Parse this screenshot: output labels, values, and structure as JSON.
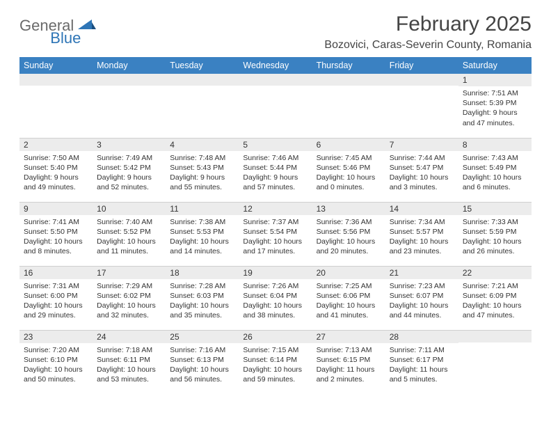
{
  "logo": {
    "part1": "General",
    "part2": "Blue"
  },
  "title": "February 2025",
  "location": "Bozovici, Caras-Severin County, Romania",
  "colors": {
    "header_bg": "#3a81c2",
    "header_text": "#ffffff",
    "daynum_bg": "#ececec",
    "border": "#cfcfcf",
    "logo_gray": "#6a6a6a",
    "logo_blue": "#2e75b6",
    "text": "#333333"
  },
  "weekdays": [
    "Sunday",
    "Monday",
    "Tuesday",
    "Wednesday",
    "Thursday",
    "Friday",
    "Saturday"
  ],
  "weeks": [
    [
      {
        "n": "",
        "sr": "",
        "ss": "",
        "dl": ""
      },
      {
        "n": "",
        "sr": "",
        "ss": "",
        "dl": ""
      },
      {
        "n": "",
        "sr": "",
        "ss": "",
        "dl": ""
      },
      {
        "n": "",
        "sr": "",
        "ss": "",
        "dl": ""
      },
      {
        "n": "",
        "sr": "",
        "ss": "",
        "dl": ""
      },
      {
        "n": "",
        "sr": "",
        "ss": "",
        "dl": ""
      },
      {
        "n": "1",
        "sr": "Sunrise: 7:51 AM",
        "ss": "Sunset: 5:39 PM",
        "dl": "Daylight: 9 hours and 47 minutes."
      }
    ],
    [
      {
        "n": "2",
        "sr": "Sunrise: 7:50 AM",
        "ss": "Sunset: 5:40 PM",
        "dl": "Daylight: 9 hours and 49 minutes."
      },
      {
        "n": "3",
        "sr": "Sunrise: 7:49 AM",
        "ss": "Sunset: 5:42 PM",
        "dl": "Daylight: 9 hours and 52 minutes."
      },
      {
        "n": "4",
        "sr": "Sunrise: 7:48 AM",
        "ss": "Sunset: 5:43 PM",
        "dl": "Daylight: 9 hours and 55 minutes."
      },
      {
        "n": "5",
        "sr": "Sunrise: 7:46 AM",
        "ss": "Sunset: 5:44 PM",
        "dl": "Daylight: 9 hours and 57 minutes."
      },
      {
        "n": "6",
        "sr": "Sunrise: 7:45 AM",
        "ss": "Sunset: 5:46 PM",
        "dl": "Daylight: 10 hours and 0 minutes."
      },
      {
        "n": "7",
        "sr": "Sunrise: 7:44 AM",
        "ss": "Sunset: 5:47 PM",
        "dl": "Daylight: 10 hours and 3 minutes."
      },
      {
        "n": "8",
        "sr": "Sunrise: 7:43 AM",
        "ss": "Sunset: 5:49 PM",
        "dl": "Daylight: 10 hours and 6 minutes."
      }
    ],
    [
      {
        "n": "9",
        "sr": "Sunrise: 7:41 AM",
        "ss": "Sunset: 5:50 PM",
        "dl": "Daylight: 10 hours and 8 minutes."
      },
      {
        "n": "10",
        "sr": "Sunrise: 7:40 AM",
        "ss": "Sunset: 5:52 PM",
        "dl": "Daylight: 10 hours and 11 minutes."
      },
      {
        "n": "11",
        "sr": "Sunrise: 7:38 AM",
        "ss": "Sunset: 5:53 PM",
        "dl": "Daylight: 10 hours and 14 minutes."
      },
      {
        "n": "12",
        "sr": "Sunrise: 7:37 AM",
        "ss": "Sunset: 5:54 PM",
        "dl": "Daylight: 10 hours and 17 minutes."
      },
      {
        "n": "13",
        "sr": "Sunrise: 7:36 AM",
        "ss": "Sunset: 5:56 PM",
        "dl": "Daylight: 10 hours and 20 minutes."
      },
      {
        "n": "14",
        "sr": "Sunrise: 7:34 AM",
        "ss": "Sunset: 5:57 PM",
        "dl": "Daylight: 10 hours and 23 minutes."
      },
      {
        "n": "15",
        "sr": "Sunrise: 7:33 AM",
        "ss": "Sunset: 5:59 PM",
        "dl": "Daylight: 10 hours and 26 minutes."
      }
    ],
    [
      {
        "n": "16",
        "sr": "Sunrise: 7:31 AM",
        "ss": "Sunset: 6:00 PM",
        "dl": "Daylight: 10 hours and 29 minutes."
      },
      {
        "n": "17",
        "sr": "Sunrise: 7:29 AM",
        "ss": "Sunset: 6:02 PM",
        "dl": "Daylight: 10 hours and 32 minutes."
      },
      {
        "n": "18",
        "sr": "Sunrise: 7:28 AM",
        "ss": "Sunset: 6:03 PM",
        "dl": "Daylight: 10 hours and 35 minutes."
      },
      {
        "n": "19",
        "sr": "Sunrise: 7:26 AM",
        "ss": "Sunset: 6:04 PM",
        "dl": "Daylight: 10 hours and 38 minutes."
      },
      {
        "n": "20",
        "sr": "Sunrise: 7:25 AM",
        "ss": "Sunset: 6:06 PM",
        "dl": "Daylight: 10 hours and 41 minutes."
      },
      {
        "n": "21",
        "sr": "Sunrise: 7:23 AM",
        "ss": "Sunset: 6:07 PM",
        "dl": "Daylight: 10 hours and 44 minutes."
      },
      {
        "n": "22",
        "sr": "Sunrise: 7:21 AM",
        "ss": "Sunset: 6:09 PM",
        "dl": "Daylight: 10 hours and 47 minutes."
      }
    ],
    [
      {
        "n": "23",
        "sr": "Sunrise: 7:20 AM",
        "ss": "Sunset: 6:10 PM",
        "dl": "Daylight: 10 hours and 50 minutes."
      },
      {
        "n": "24",
        "sr": "Sunrise: 7:18 AM",
        "ss": "Sunset: 6:11 PM",
        "dl": "Daylight: 10 hours and 53 minutes."
      },
      {
        "n": "25",
        "sr": "Sunrise: 7:16 AM",
        "ss": "Sunset: 6:13 PM",
        "dl": "Daylight: 10 hours and 56 minutes."
      },
      {
        "n": "26",
        "sr": "Sunrise: 7:15 AM",
        "ss": "Sunset: 6:14 PM",
        "dl": "Daylight: 10 hours and 59 minutes."
      },
      {
        "n": "27",
        "sr": "Sunrise: 7:13 AM",
        "ss": "Sunset: 6:15 PM",
        "dl": "Daylight: 11 hours and 2 minutes."
      },
      {
        "n": "28",
        "sr": "Sunrise: 7:11 AM",
        "ss": "Sunset: 6:17 PM",
        "dl": "Daylight: 11 hours and 5 minutes."
      },
      {
        "n": "",
        "sr": "",
        "ss": "",
        "dl": ""
      }
    ]
  ]
}
